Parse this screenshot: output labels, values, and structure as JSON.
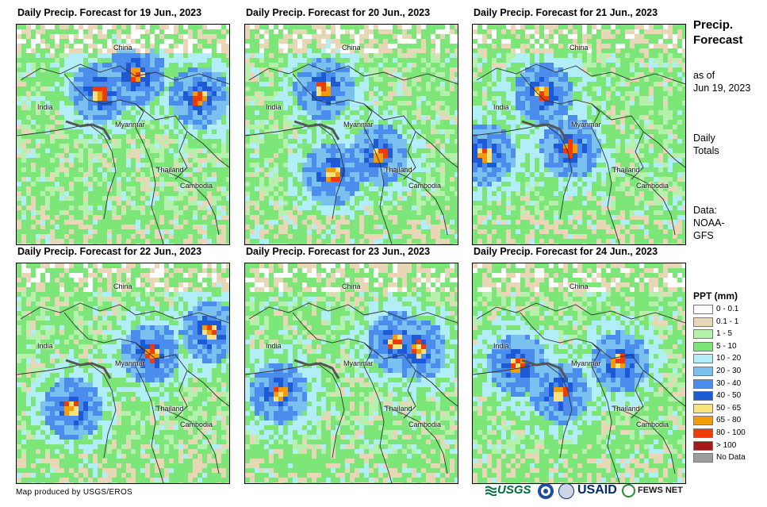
{
  "panels": [
    {
      "title": "Daily Precip. Forecast for 19 Jun., 2023"
    },
    {
      "title": "Daily Precip. Forecast for 20 Jun., 2023"
    },
    {
      "title": "Daily Precip. Forecast for 21 Jun., 2023"
    },
    {
      "title": "Daily Precip. Forecast for 22 Jun., 2023"
    },
    {
      "title": "Daily Precip. Forecast for 23 Jun., 2023"
    },
    {
      "title": "Daily Precip. Forecast for 24 Jun., 2023"
    }
  ],
  "places": {
    "china": "China",
    "india": "India",
    "myanmar": "Myanmar",
    "thailand": "Thailand",
    "cambodia": "Cambodia"
  },
  "sidebar": {
    "title": "Precip. Forecast",
    "as_of": "as of",
    "date": "Jun 19, 2023",
    "daily_totals": "Daily Totals",
    "data_label": "Data:",
    "data_source": "NOAA-GFS"
  },
  "legend": {
    "title": "PPT (mm)",
    "items": [
      {
        "label": "0 - 0.1",
        "color": "#ffffff"
      },
      {
        "label": "0.1 - 1",
        "color": "#e8d7b7"
      },
      {
        "label": "1 - 5",
        "color": "#b6f0ad"
      },
      {
        "label": "5 - 10",
        "color": "#7de679"
      },
      {
        "label": "10 - 20",
        "color": "#b1eef7"
      },
      {
        "label": "20 - 30",
        "color": "#7bc1ef"
      },
      {
        "label": "30 - 40",
        "color": "#4a8ded"
      },
      {
        "label": "40 - 50",
        "color": "#1d5bd6"
      },
      {
        "label": "50 - 65",
        "color": "#f7e27c"
      },
      {
        "label": "65 - 80",
        "color": "#f39b0b"
      },
      {
        "label": "80 - 100",
        "color": "#f03b06"
      },
      {
        "label": "> 100",
        "color": "#a31a1a"
      },
      {
        "label": "No Data",
        "color": "#9d9d9d"
      }
    ]
  },
  "footer": {
    "credit": "Map produced by USGS/EROS",
    "logos": {
      "usgs": "USGS",
      "usaid": "USAID",
      "fewsnet": "FEWS NET"
    }
  }
}
